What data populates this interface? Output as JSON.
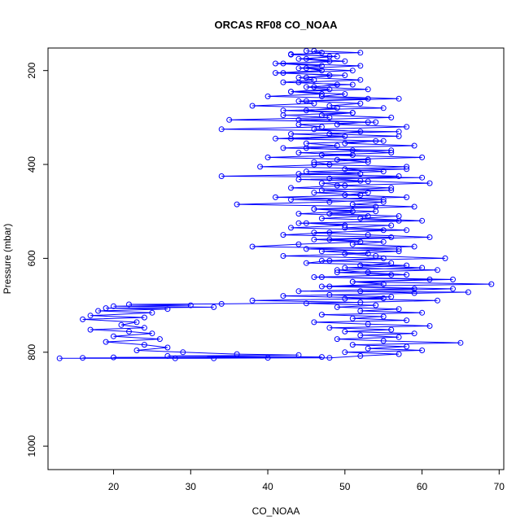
{
  "chart_data": {
    "type": "line",
    "title": "ORCAS RF08 CO_NOAA",
    "xlabel": "CO_NOAA",
    "ylabel": "Pressure (mbar)",
    "xlim": [
      11.5,
      70.6
    ],
    "ylim": [
      1050,
      152
    ],
    "y_reversed": true,
    "x_ticks": [
      20,
      30,
      40,
      50,
      60,
      70
    ],
    "y_ticks": [
      200,
      400,
      600,
      800,
      1000
    ],
    "grid": false,
    "legend": "none",
    "color": "#0000ff",
    "marker": "open-circle",
    "series": [
      {
        "points": [
          [
            45,
            158
          ],
          [
            47,
            162
          ],
          [
            43,
            166
          ],
          [
            49,
            170
          ],
          [
            44,
            175
          ],
          [
            48,
            180
          ],
          [
            42,
            185
          ],
          [
            52,
            190
          ],
          [
            45,
            195
          ],
          [
            47,
            200
          ],
          [
            41,
            205
          ],
          [
            50,
            210
          ],
          [
            44,
            215
          ],
          [
            46,
            220
          ],
          [
            42,
            225
          ],
          [
            51,
            230
          ],
          [
            45,
            235
          ],
          [
            48,
            240
          ],
          [
            43,
            245
          ],
          [
            47,
            250
          ],
          [
            40,
            255
          ],
          [
            53,
            260
          ],
          [
            44,
            265
          ],
          [
            46,
            270
          ],
          [
            38,
            275
          ],
          [
            49,
            280
          ],
          [
            45,
            285
          ],
          [
            51,
            290
          ],
          [
            42,
            295
          ],
          [
            48,
            300
          ],
          [
            35,
            305
          ],
          [
            54,
            310
          ],
          [
            44,
            315
          ],
          [
            47,
            320
          ],
          [
            34,
            325
          ],
          [
            57,
            330
          ],
          [
            43,
            335
          ],
          [
            50,
            340
          ],
          [
            41,
            345
          ],
          [
            55,
            350
          ],
          [
            45,
            355
          ],
          [
            49,
            360
          ],
          [
            42,
            365
          ],
          [
            56,
            370
          ],
          [
            44,
            375
          ],
          [
            51,
            380
          ],
          [
            40,
            385
          ],
          [
            53,
            390
          ],
          [
            46,
            395
          ],
          [
            48,
            400
          ],
          [
            39,
            405
          ],
          [
            58,
            410
          ],
          [
            45,
            415
          ],
          [
            52,
            420
          ],
          [
            34,
            425
          ],
          [
            60,
            428
          ],
          [
            44,
            432
          ],
          [
            53,
            436
          ],
          [
            47,
            440
          ],
          [
            50,
            445
          ],
          [
            43,
            450
          ],
          [
            56,
            455
          ],
          [
            46,
            460
          ],
          [
            52,
            465
          ],
          [
            41,
            470
          ],
          [
            55,
            475
          ],
          [
            48,
            480
          ],
          [
            36,
            485
          ],
          [
            54,
            490
          ],
          [
            46,
            495
          ],
          [
            51,
            500
          ],
          [
            44,
            505
          ],
          [
            53,
            510
          ],
          [
            47,
            515
          ],
          [
            57,
            520
          ],
          [
            45,
            525
          ],
          [
            50,
            530
          ],
          [
            43,
            535
          ],
          [
            55,
            540
          ],
          [
            48,
            545
          ],
          [
            42,
            550
          ],
          [
            56,
            555
          ],
          [
            46,
            560
          ],
          [
            52,
            565
          ],
          [
            44,
            570
          ],
          [
            38,
            575
          ],
          [
            57,
            580
          ],
          [
            47,
            585
          ],
          [
            53,
            590
          ],
          [
            42,
            595
          ],
          [
            55,
            600
          ],
          [
            48,
            605
          ],
          [
            45,
            610
          ],
          [
            58,
            615
          ],
          [
            50,
            620
          ],
          [
            62,
            625
          ],
          [
            49,
            630
          ],
          [
            56,
            635
          ],
          [
            47,
            640
          ],
          [
            64,
            645
          ],
          [
            51,
            650
          ],
          [
            69,
            655
          ],
          [
            48,
            660
          ],
          [
            59,
            665
          ],
          [
            44,
            670
          ],
          [
            66,
            672
          ],
          [
            42,
            680
          ],
          [
            55,
            685
          ],
          [
            38,
            690
          ],
          [
            52,
            694
          ],
          [
            34,
            697
          ],
          [
            22,
            698
          ],
          [
            30,
            700
          ],
          [
            20,
            702
          ],
          [
            33,
            704
          ],
          [
            19,
            706
          ],
          [
            27,
            708
          ],
          [
            18,
            712
          ],
          [
            25,
            716
          ],
          [
            17,
            722
          ],
          [
            24,
            726
          ],
          [
            16,
            730
          ],
          [
            23,
            736
          ],
          [
            21,
            742
          ],
          [
            24,
            748
          ],
          [
            17,
            752
          ],
          [
            22,
            756
          ],
          [
            25,
            760
          ],
          [
            20,
            766
          ],
          [
            26,
            772
          ],
          [
            19,
            778
          ],
          [
            24,
            784
          ],
          [
            27,
            790
          ],
          [
            23,
            796
          ],
          [
            29,
            800
          ],
          [
            36,
            804
          ],
          [
            44,
            806
          ],
          [
            27,
            808
          ],
          [
            47,
            810
          ],
          [
            20,
            811
          ],
          [
            40,
            812
          ],
          [
            16,
            812
          ],
          [
            33,
            813
          ],
          [
            13,
            813
          ],
          [
            28,
            813
          ],
          [
            48,
            812
          ],
          [
            52,
            808
          ],
          [
            57,
            804
          ],
          [
            50,
            800
          ],
          [
            60,
            796
          ],
          [
            53,
            792
          ],
          [
            58,
            788
          ],
          [
            51,
            784
          ],
          [
            65,
            780
          ],
          [
            55,
            776
          ],
          [
            49,
            772
          ],
          [
            57,
            768
          ],
          [
            52,
            764
          ],
          [
            59,
            760
          ],
          [
            50,
            756
          ],
          [
            56,
            752
          ],
          [
            48,
            748
          ],
          [
            61,
            744
          ],
          [
            53,
            740
          ],
          [
            46,
            736
          ],
          [
            58,
            732
          ],
          [
            51,
            728
          ],
          [
            55,
            724
          ],
          [
            47,
            720
          ],
          [
            60,
            716
          ],
          [
            52,
            712
          ],
          [
            57,
            708
          ],
          [
            49,
            704
          ],
          [
            54,
            700
          ],
          [
            45,
            696
          ],
          [
            62,
            690
          ],
          [
            50,
            686
          ],
          [
            56,
            682
          ],
          [
            48,
            678
          ],
          [
            59,
            674
          ],
          [
            52,
            670
          ],
          [
            64,
            665
          ],
          [
            47,
            660
          ],
          [
            55,
            655
          ],
          [
            51,
            650
          ],
          [
            61,
            645
          ],
          [
            46,
            640
          ],
          [
            58,
            635
          ],
          [
            53,
            630
          ],
          [
            49,
            625
          ],
          [
            60,
            620
          ],
          [
            52,
            615
          ],
          [
            56,
            610
          ],
          [
            47,
            605
          ],
          [
            63,
            600
          ],
          [
            54,
            595
          ],
          [
            50,
            590
          ],
          [
            57,
            585
          ],
          [
            45,
            580
          ],
          [
            59,
            575
          ],
          [
            51,
            570
          ],
          [
            55,
            565
          ],
          [
            48,
            560
          ],
          [
            61,
            555
          ],
          [
            53,
            550
          ],
          [
            46,
            545
          ],
          [
            58,
            540
          ],
          [
            50,
            535
          ],
          [
            56,
            530
          ],
          [
            44,
            525
          ],
          [
            60,
            520
          ],
          [
            52,
            515
          ],
          [
            57,
            510
          ],
          [
            48,
            505
          ],
          [
            54,
            500
          ],
          [
            46,
            495
          ],
          [
            59,
            490
          ],
          [
            51,
            485
          ],
          [
            55,
            480
          ],
          [
            43,
            475
          ],
          [
            58,
            470
          ],
          [
            50,
            465
          ],
          [
            53,
            460
          ],
          [
            47,
            455
          ],
          [
            56,
            450
          ],
          [
            49,
            445
          ],
          [
            61,
            440
          ],
          [
            52,
            435
          ],
          [
            48,
            430
          ],
          [
            57,
            425
          ],
          [
            44,
            420
          ],
          [
            55,
            415
          ],
          [
            50,
            410
          ],
          [
            58,
            405
          ],
          [
            46,
            400
          ],
          [
            53,
            395
          ],
          [
            49,
            390
          ],
          [
            60,
            385
          ],
          [
            47,
            380
          ],
          [
            56,
            375
          ],
          [
            51,
            370
          ],
          [
            45,
            365
          ],
          [
            59,
            360
          ],
          [
            50,
            355
          ],
          [
            54,
            350
          ],
          [
            43,
            345
          ],
          [
            57,
            340
          ],
          [
            48,
            335
          ],
          [
            52,
            330
          ],
          [
            46,
            325
          ],
          [
            58,
            320
          ],
          [
            49,
            315
          ],
          [
            53,
            310
          ],
          [
            44,
            305
          ],
          [
            56,
            300
          ],
          [
            47,
            295
          ],
          [
            51,
            290
          ],
          [
            42,
            285
          ],
          [
            55,
            280
          ],
          [
            48,
            275
          ],
          [
            52,
            270
          ],
          [
            45,
            265
          ],
          [
            57,
            260
          ],
          [
            47,
            255
          ],
          [
            50,
            250
          ],
          [
            43,
            245
          ],
          [
            53,
            240
          ],
          [
            46,
            235
          ],
          [
            49,
            230
          ],
          [
            44,
            225
          ],
          [
            52,
            220
          ],
          [
            45,
            215
          ],
          [
            48,
            210
          ],
          [
            42,
            205
          ],
          [
            51,
            200
          ],
          [
            44,
            195
          ],
          [
            47,
            190
          ],
          [
            41,
            185
          ],
          [
            50,
            180
          ],
          [
            45,
            175
          ],
          [
            48,
            170
          ],
          [
            43,
            165
          ],
          [
            52,
            162
          ],
          [
            46,
            158
          ]
        ]
      }
    ]
  }
}
